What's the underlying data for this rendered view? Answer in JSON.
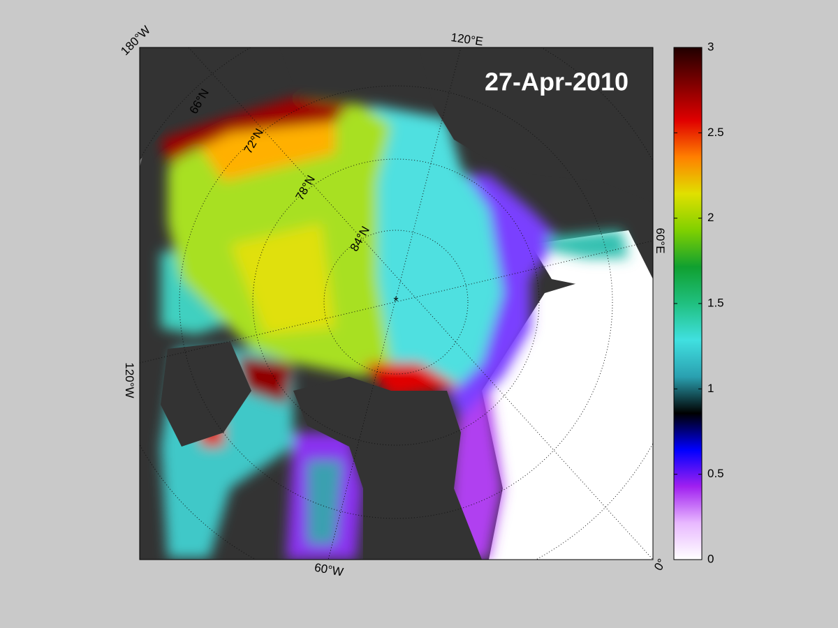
{
  "map": {
    "date": "27-Apr-2010",
    "lon_labels": [
      "180°W",
      "120°E",
      "60°E",
      "0°",
      "60°W",
      "120°W"
    ],
    "lat_labels": [
      "66°N",
      "72°N",
      "78°N",
      "84°N"
    ]
  },
  "colorbar": {
    "lim": [
      0,
      3
    ],
    "ticks": [
      0,
      0.5,
      1,
      1.5,
      2,
      2.5,
      3
    ],
    "colormap": [
      "#ffffff",
      "#e8b8ff",
      "#a020f0",
      "#0000ff",
      "#000000",
      "#2aa0b0",
      "#40e0e0",
      "#20c080",
      "#10a030",
      "#80d000",
      "#e0e000",
      "#ff8000",
      "#e00000",
      "#800000",
      "#200000"
    ]
  }
}
